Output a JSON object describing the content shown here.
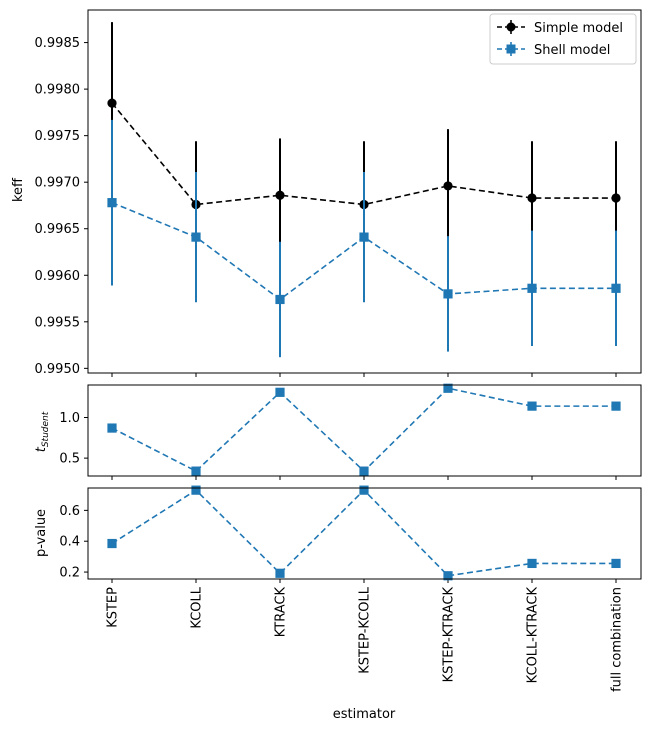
{
  "chart_data": [
    {
      "type": "line",
      "panel": "top",
      "ylabel": "keff",
      "xlabel": "",
      "categories": [
        "KSTEP",
        "KCOLL",
        "KTRACK",
        "KSTEP-KCOLL",
        "KSTEP-KTRACK",
        "KCOLL-KTRACK",
        "full combination"
      ],
      "ylim": [
        0.99495,
        0.99885
      ],
      "yticks": [
        0.995,
        0.9955,
        0.996,
        0.9965,
        0.997,
        0.9975,
        0.998,
        0.9985
      ],
      "ytick_labels": [
        "0.9950",
        "0.9955",
        "0.9960",
        "0.9965",
        "0.9970",
        "0.9975",
        "0.9980",
        "0.9985"
      ],
      "legend_position": "top-right",
      "series": [
        {
          "name": "Simple model",
          "color": "#000000",
          "marker": "circle",
          "linestyle": "dashed",
          "values": [
            0.99785,
            0.99676,
            0.99686,
            0.99676,
            0.99696,
            0.99683,
            0.99683
          ],
          "errors": [
            0.00087,
            0.00068,
            0.00061,
            0.00068,
            0.00061,
            0.00061,
            0.00061
          ]
        },
        {
          "name": "Shell model",
          "color": "#1f77b4",
          "marker": "square",
          "linestyle": "dashed",
          "values": [
            0.99678,
            0.99641,
            0.99574,
            0.99641,
            0.9958,
            0.99586,
            0.99586
          ],
          "errors": [
            0.00089,
            0.0007,
            0.00062,
            0.0007,
            0.00062,
            0.00062,
            0.00062
          ]
        }
      ]
    },
    {
      "type": "line",
      "panel": "middle",
      "ylabel_main": "t",
      "ylabel_sub": "Student",
      "categories": [
        "KSTEP",
        "KCOLL",
        "KTRACK",
        "KSTEP-KCOLL",
        "KSTEP-KTRACK",
        "KCOLL-KTRACK",
        "full combination"
      ],
      "ylim": [
        0.28,
        1.4
      ],
      "yticks": [
        0.5,
        1.0
      ],
      "ytick_labels": [
        "0.5",
        "1.0"
      ],
      "series": [
        {
          "color": "#1f77b4",
          "marker": "square",
          "linestyle": "dashed",
          "values": [
            0.87,
            0.34,
            1.31,
            0.34,
            1.36,
            1.14,
            1.14
          ]
        }
      ]
    },
    {
      "type": "line",
      "panel": "bottom",
      "ylabel": "p-value",
      "xlabel": "estimator",
      "categories": [
        "KSTEP",
        "KCOLL",
        "KTRACK",
        "KSTEP-KCOLL",
        "KSTEP-KTRACK",
        "KCOLL-KTRACK",
        "full combination"
      ],
      "ylim": [
        0.155,
        0.745
      ],
      "yticks": [
        0.2,
        0.4,
        0.6
      ],
      "ytick_labels": [
        "0.2",
        "0.4",
        "0.6"
      ],
      "series": [
        {
          "color": "#1f77b4",
          "marker": "square",
          "linestyle": "dashed",
          "values": [
            0.385,
            0.731,
            0.192,
            0.731,
            0.176,
            0.256,
            0.256
          ]
        }
      ]
    }
  ]
}
